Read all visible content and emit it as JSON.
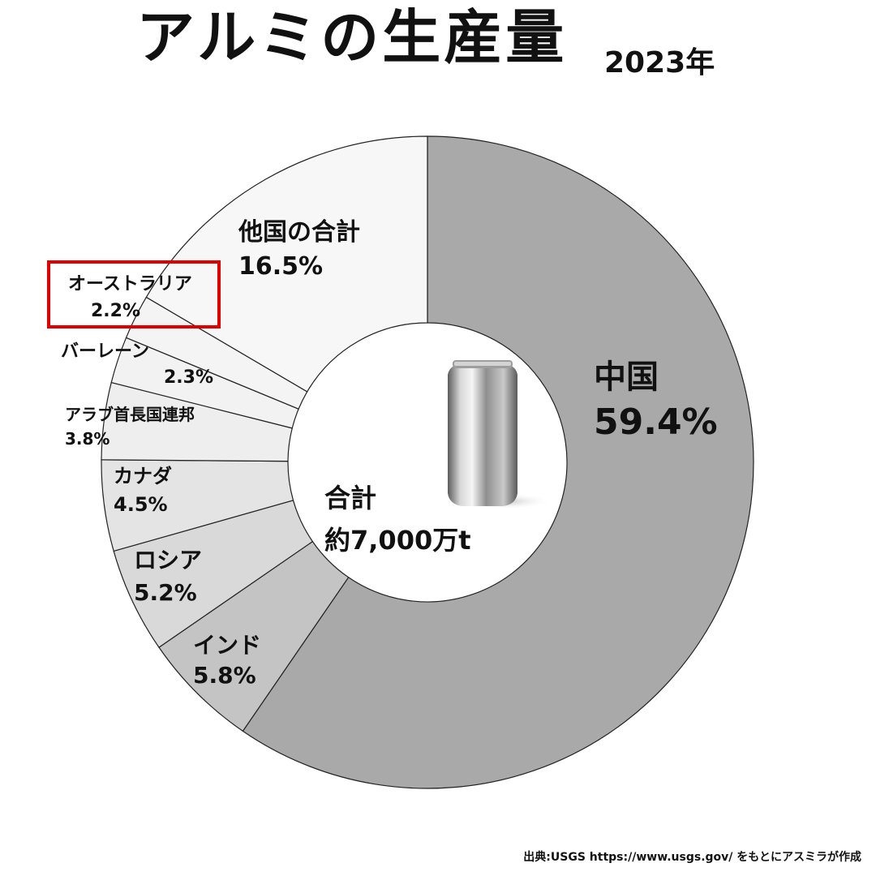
{
  "title": "アルミの生産量",
  "year": "2023年",
  "center": {
    "label": "合計",
    "value": "約7,000万t"
  },
  "source": "出典:USGS https://www.usgs.gov/ をもとにアスミラが作成",
  "highlight": {
    "target": "オーストラリア",
    "color": "#e00000"
  },
  "chart_data": {
    "type": "pie",
    "style": "donut",
    "slices": [
      {
        "label": "中国",
        "value": 59.4,
        "display": "59.4%",
        "color": "#a9a9a9"
      },
      {
        "label": "インド",
        "value": 5.8,
        "display": "5.8%",
        "color": "#c4c4c4"
      },
      {
        "label": "ロシア",
        "value": 5.2,
        "display": "5.2%",
        "color": "#d9d9d9"
      },
      {
        "label": "カナダ",
        "value": 4.5,
        "display": "4.5%",
        "color": "#e4e4e4"
      },
      {
        "label": "アラブ首長国連邦",
        "value": 3.8,
        "display": "3.8%",
        "color": "#eeeeee"
      },
      {
        "label": "バーレーン",
        "value": 2.3,
        "display": "2.3%",
        "color": "#f2f2f2"
      },
      {
        "label": "オーストラリア",
        "value": 2.2,
        "display": "2.2%",
        "color": "#f4f4f4"
      },
      {
        "label": "他国の合計",
        "value": 16.5,
        "display": "16.5%",
        "color": "#f7f7f7"
      }
    ]
  }
}
